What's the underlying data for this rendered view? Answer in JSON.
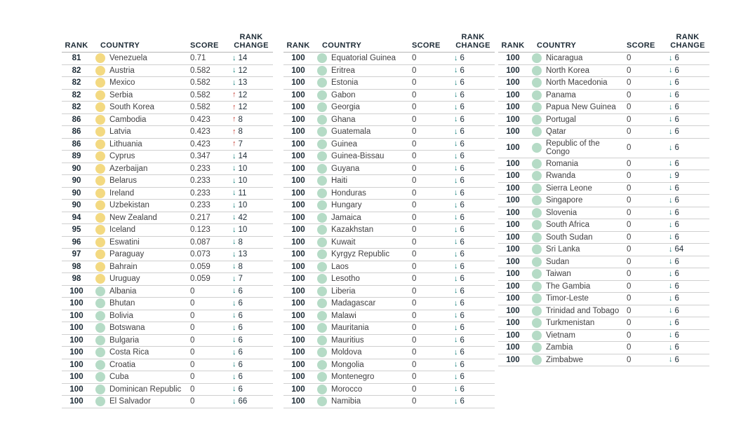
{
  "headers": {
    "rank": "RANK",
    "country": "COUNTRY",
    "score": "SCORE",
    "change_line1": "RANK",
    "change_line2": "CHANGE"
  },
  "glyphs": {
    "up_arrow": "↑",
    "down_arrow": "↓"
  },
  "colors": {
    "header_text": "#1d2b36",
    "rank_text": "#1d2b36",
    "body_text": "#414042",
    "dot_yellow": "#f3d981",
    "dot_green": "#b5dbc6",
    "arrow_down": "#0e7c78",
    "arrow_up": "#c63d33",
    "row_line": "#cfcfcf",
    "background": "#ffffff"
  },
  "chart_data": {
    "type": "table",
    "columns": [
      "RANK",
      "COUNTRY",
      "SCORE",
      "RANK CHANGE"
    ],
    "panels": [
      {
        "rows": [
          {
            "rank": "81",
            "country": "Venezuela",
            "score": "0.71",
            "change": "14",
            "direction": "down",
            "dot": "yellow"
          },
          {
            "rank": "82",
            "country": "Austria",
            "score": "0.582",
            "change": "12",
            "direction": "down",
            "dot": "yellow"
          },
          {
            "rank": "82",
            "country": "Mexico",
            "score": "0.582",
            "change": "13",
            "direction": "down",
            "dot": "yellow"
          },
          {
            "rank": "82",
            "country": "Serbia",
            "score": "0.582",
            "change": "12",
            "direction": "up",
            "dot": "yellow"
          },
          {
            "rank": "82",
            "country": "South Korea",
            "score": "0.582",
            "change": "12",
            "direction": "up",
            "dot": "yellow"
          },
          {
            "rank": "86",
            "country": "Cambodia",
            "score": "0.423",
            "change": "8",
            "direction": "up",
            "dot": "yellow"
          },
          {
            "rank": "86",
            "country": "Latvia",
            "score": "0.423",
            "change": "8",
            "direction": "up",
            "dot": "yellow"
          },
          {
            "rank": "86",
            "country": "Lithuania",
            "score": "0.423",
            "change": "7",
            "direction": "up",
            "dot": "yellow"
          },
          {
            "rank": "89",
            "country": "Cyprus",
            "score": "0.347",
            "change": "14",
            "direction": "down",
            "dot": "yellow"
          },
          {
            "rank": "90",
            "country": "Azerbaijan",
            "score": "0.233",
            "change": "10",
            "direction": "down",
            "dot": "yellow"
          },
          {
            "rank": "90",
            "country": "Belarus",
            "score": "0.233",
            "change": "10",
            "direction": "down",
            "dot": "yellow"
          },
          {
            "rank": "90",
            "country": "Ireland",
            "score": "0.233",
            "change": "11",
            "direction": "down",
            "dot": "yellow"
          },
          {
            "rank": "90",
            "country": "Uzbekistan",
            "score": "0.233",
            "change": "10",
            "direction": "down",
            "dot": "yellow"
          },
          {
            "rank": "94",
            "country": "New Zealand",
            "score": "0.217",
            "change": "42",
            "direction": "down",
            "dot": "yellow"
          },
          {
            "rank": "95",
            "country": "Iceland",
            "score": "0.123",
            "change": "10",
            "direction": "down",
            "dot": "yellow"
          },
          {
            "rank": "96",
            "country": "Eswatini",
            "score": "0.087",
            "change": "8",
            "direction": "down",
            "dot": "yellow"
          },
          {
            "rank": "97",
            "country": "Paraguay",
            "score": "0.073",
            "change": "13",
            "direction": "down",
            "dot": "yellow"
          },
          {
            "rank": "98",
            "country": "Bahrain",
            "score": "0.059",
            "change": "8",
            "direction": "down",
            "dot": "yellow"
          },
          {
            "rank": "98",
            "country": "Uruguay",
            "score": "0.059",
            "change": "7",
            "direction": "down",
            "dot": "yellow"
          },
          {
            "rank": "100",
            "country": "Albania",
            "score": "0",
            "change": "6",
            "direction": "down",
            "dot": "green"
          },
          {
            "rank": "100",
            "country": "Bhutan",
            "score": "0",
            "change": "6",
            "direction": "down",
            "dot": "green"
          },
          {
            "rank": "100",
            "country": "Bolivia",
            "score": "0",
            "change": "6",
            "direction": "down",
            "dot": "green"
          },
          {
            "rank": "100",
            "country": "Botswana",
            "score": "0",
            "change": "6",
            "direction": "down",
            "dot": "green"
          },
          {
            "rank": "100",
            "country": "Bulgaria",
            "score": "0",
            "change": "6",
            "direction": "down",
            "dot": "green"
          },
          {
            "rank": "100",
            "country": "Costa Rica",
            "score": "0",
            "change": "6",
            "direction": "down",
            "dot": "green"
          },
          {
            "rank": "100",
            "country": "Croatia",
            "score": "0",
            "change": "6",
            "direction": "down",
            "dot": "green"
          },
          {
            "rank": "100",
            "country": "Cuba",
            "score": "0",
            "change": "6",
            "direction": "down",
            "dot": "green"
          },
          {
            "rank": "100",
            "country": "Dominican Republic",
            "score": "0",
            "change": "6",
            "direction": "down",
            "dot": "green"
          },
          {
            "rank": "100",
            "country": "El Salvador",
            "score": "0",
            "change": "66",
            "direction": "down",
            "dot": "green"
          }
        ]
      },
      {
        "rows": [
          {
            "rank": "100",
            "country": "Equatorial Guinea",
            "score": "0",
            "change": "6",
            "direction": "down",
            "dot": "green"
          },
          {
            "rank": "100",
            "country": "Eritrea",
            "score": "0",
            "change": "6",
            "direction": "down",
            "dot": "green"
          },
          {
            "rank": "100",
            "country": "Estonia",
            "score": "0",
            "change": "6",
            "direction": "down",
            "dot": "green"
          },
          {
            "rank": "100",
            "country": "Gabon",
            "score": "0",
            "change": "6",
            "direction": "down",
            "dot": "green"
          },
          {
            "rank": "100",
            "country": "Georgia",
            "score": "0",
            "change": "6",
            "direction": "down",
            "dot": "green"
          },
          {
            "rank": "100",
            "country": "Ghana",
            "score": "0",
            "change": "6",
            "direction": "down",
            "dot": "green"
          },
          {
            "rank": "100",
            "country": "Guatemala",
            "score": "0",
            "change": "6",
            "direction": "down",
            "dot": "green"
          },
          {
            "rank": "100",
            "country": "Guinea",
            "score": "0",
            "change": "6",
            "direction": "down",
            "dot": "green"
          },
          {
            "rank": "100",
            "country": "Guinea-Bissau",
            "score": "0",
            "change": "6",
            "direction": "down",
            "dot": "green"
          },
          {
            "rank": "100",
            "country": "Guyana",
            "score": "0",
            "change": "6",
            "direction": "down",
            "dot": "green"
          },
          {
            "rank": "100",
            "country": "Haiti",
            "score": "0",
            "change": "6",
            "direction": "down",
            "dot": "green"
          },
          {
            "rank": "100",
            "country": "Honduras",
            "score": "0",
            "change": "6",
            "direction": "down",
            "dot": "green"
          },
          {
            "rank": "100",
            "country": "Hungary",
            "score": "0",
            "change": "6",
            "direction": "down",
            "dot": "green"
          },
          {
            "rank": "100",
            "country": "Jamaica",
            "score": "0",
            "change": "6",
            "direction": "down",
            "dot": "green"
          },
          {
            "rank": "100",
            "country": "Kazakhstan",
            "score": "0",
            "change": "6",
            "direction": "down",
            "dot": "green"
          },
          {
            "rank": "100",
            "country": "Kuwait",
            "score": "0",
            "change": "6",
            "direction": "down",
            "dot": "green"
          },
          {
            "rank": "100",
            "country": "Kyrgyz Republic",
            "score": "0",
            "change": "6",
            "direction": "down",
            "dot": "green"
          },
          {
            "rank": "100",
            "country": "Laos",
            "score": "0",
            "change": "6",
            "direction": "down",
            "dot": "green"
          },
          {
            "rank": "100",
            "country": "Lesotho",
            "score": "0",
            "change": "6",
            "direction": "down",
            "dot": "green"
          },
          {
            "rank": "100",
            "country": "Liberia",
            "score": "0",
            "change": "6",
            "direction": "down",
            "dot": "green"
          },
          {
            "rank": "100",
            "country": "Madagascar",
            "score": "0",
            "change": "6",
            "direction": "down",
            "dot": "green"
          },
          {
            "rank": "100",
            "country": "Malawi",
            "score": "0",
            "change": "6",
            "direction": "down",
            "dot": "green"
          },
          {
            "rank": "100",
            "country": "Mauritania",
            "score": "0",
            "change": "6",
            "direction": "down",
            "dot": "green"
          },
          {
            "rank": "100",
            "country": "Mauritius",
            "score": "0",
            "change": "6",
            "direction": "down",
            "dot": "green"
          },
          {
            "rank": "100",
            "country": "Moldova",
            "score": "0",
            "change": "6",
            "direction": "down",
            "dot": "green"
          },
          {
            "rank": "100",
            "country": "Mongolia",
            "score": "0",
            "change": "6",
            "direction": "down",
            "dot": "green"
          },
          {
            "rank": "100",
            "country": "Montenegro",
            "score": "0",
            "change": "6",
            "direction": "down",
            "dot": "green"
          },
          {
            "rank": "100",
            "country": "Morocco",
            "score": "0",
            "change": "6",
            "direction": "down",
            "dot": "green"
          },
          {
            "rank": "100",
            "country": "Namibia",
            "score": "0",
            "change": "6",
            "direction": "down",
            "dot": "green"
          }
        ]
      },
      {
        "rows": [
          {
            "rank": "100",
            "country": "Nicaragua",
            "score": "0",
            "change": "6",
            "direction": "down",
            "dot": "green"
          },
          {
            "rank": "100",
            "country": "North Korea",
            "score": "0",
            "change": "6",
            "direction": "down",
            "dot": "green"
          },
          {
            "rank": "100",
            "country": "North Macedonia",
            "score": "0",
            "change": "6",
            "direction": "down",
            "dot": "green"
          },
          {
            "rank": "100",
            "country": "Panama",
            "score": "0",
            "change": "6",
            "direction": "down",
            "dot": "green"
          },
          {
            "rank": "100",
            "country": "Papua New Guinea",
            "score": "0",
            "change": "6",
            "direction": "down",
            "dot": "green"
          },
          {
            "rank": "100",
            "country": "Portugal",
            "score": "0",
            "change": "6",
            "direction": "down",
            "dot": "green"
          },
          {
            "rank": "100",
            "country": "Qatar",
            "score": "0",
            "change": "6",
            "direction": "down",
            "dot": "green"
          },
          {
            "rank": "100",
            "country": "Republic of the Congo",
            "score": "0",
            "change": "6",
            "direction": "down",
            "dot": "green"
          },
          {
            "rank": "100",
            "country": "Romania",
            "score": "0",
            "change": "6",
            "direction": "down",
            "dot": "green"
          },
          {
            "rank": "100",
            "country": "Rwanda",
            "score": "0",
            "change": "9",
            "direction": "down",
            "dot": "green"
          },
          {
            "rank": "100",
            "country": "Sierra Leone",
            "score": "0",
            "change": "6",
            "direction": "down",
            "dot": "green"
          },
          {
            "rank": "100",
            "country": "Singapore",
            "score": "0",
            "change": "6",
            "direction": "down",
            "dot": "green"
          },
          {
            "rank": "100",
            "country": "Slovenia",
            "score": "0",
            "change": "6",
            "direction": "down",
            "dot": "green"
          },
          {
            "rank": "100",
            "country": "South Africa",
            "score": "0",
            "change": "6",
            "direction": "down",
            "dot": "green"
          },
          {
            "rank": "100",
            "country": "South Sudan",
            "score": "0",
            "change": "6",
            "direction": "down",
            "dot": "green"
          },
          {
            "rank": "100",
            "country": "Sri Lanka",
            "score": "0",
            "change": "64",
            "direction": "down",
            "dot": "green"
          },
          {
            "rank": "100",
            "country": "Sudan",
            "score": "0",
            "change": "6",
            "direction": "down",
            "dot": "green"
          },
          {
            "rank": "100",
            "country": "Taiwan",
            "score": "0",
            "change": "6",
            "direction": "down",
            "dot": "green"
          },
          {
            "rank": "100",
            "country": "The Gambia",
            "score": "0",
            "change": "6",
            "direction": "down",
            "dot": "green"
          },
          {
            "rank": "100",
            "country": "Timor-Leste",
            "score": "0",
            "change": "6",
            "direction": "down",
            "dot": "green"
          },
          {
            "rank": "100",
            "country": "Trinidad and Tobago",
            "score": "0",
            "change": "6",
            "direction": "down",
            "dot": "green"
          },
          {
            "rank": "100",
            "country": "Turkmenistan",
            "score": "0",
            "change": "6",
            "direction": "down",
            "dot": "green"
          },
          {
            "rank": "100",
            "country": "Vietnam",
            "score": "0",
            "change": "6",
            "direction": "down",
            "dot": "green"
          },
          {
            "rank": "100",
            "country": "Zambia",
            "score": "0",
            "change": "6",
            "direction": "down",
            "dot": "green"
          },
          {
            "rank": "100",
            "country": "Zimbabwe",
            "score": "0",
            "change": "6",
            "direction": "down",
            "dot": "green"
          }
        ]
      }
    ]
  }
}
